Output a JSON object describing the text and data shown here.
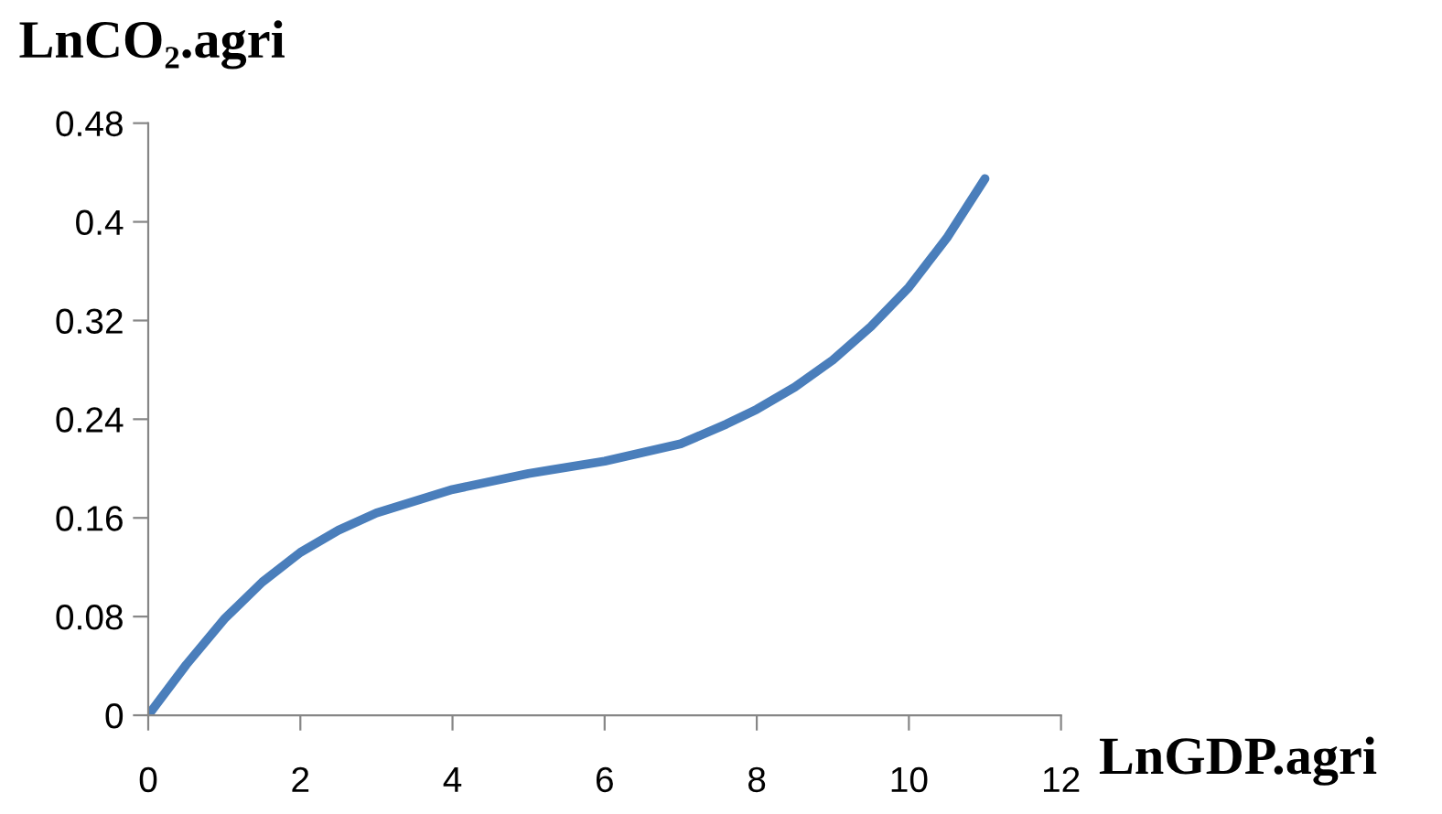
{
  "chart_data": {
    "type": "line",
    "xlabel": "LnGDP.agri",
    "ylabel": "LnCO₂.agri",
    "series": [
      {
        "color": "#4a7ebb",
        "x": [
          0,
          0.5,
          1,
          1.5,
          2,
          2.5,
          3,
          4,
          5,
          6,
          7,
          7.6,
          8,
          8.5,
          9,
          9.5,
          10,
          10.5,
          11
        ],
        "values": [
          0,
          0.041,
          0.078,
          0.108,
          0.132,
          0.15,
          0.164,
          0.183,
          0.196,
          0.206,
          0.22,
          0.236,
          0.248,
          0.266,
          0.288,
          0.315,
          0.347,
          0.387,
          0.435
        ]
      }
    ],
    "xlim": [
      0,
      12
    ],
    "xticks": [
      0,
      2,
      4,
      6,
      8,
      10,
      12
    ],
    "ylim": [
      0,
      0.48
    ],
    "yticks": [
      0,
      0.08,
      0.16,
      0.24,
      0.32,
      0.4,
      0.48
    ],
    "grid": false,
    "legend": false,
    "marker": "none",
    "line_style": "solid"
  }
}
